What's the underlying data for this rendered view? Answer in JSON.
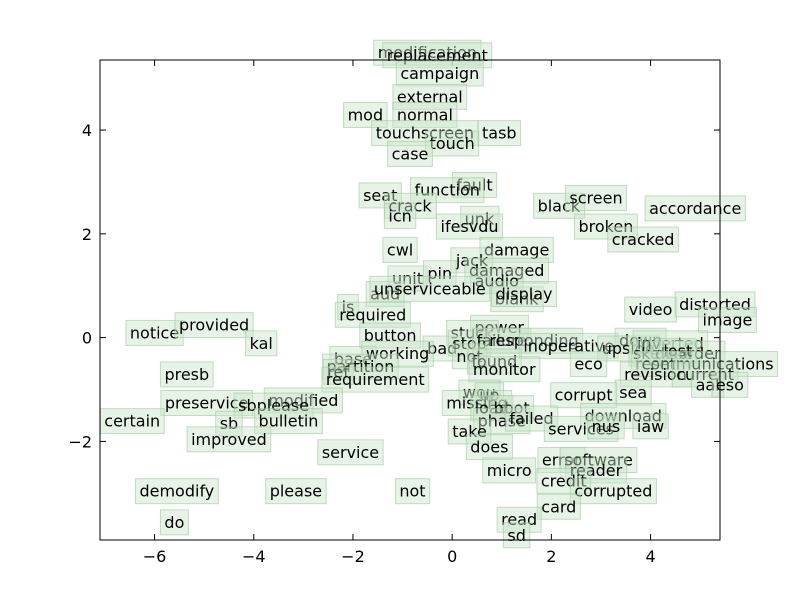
{
  "chart_data": {
    "type": "scatter",
    "title": "",
    "xlabel": "",
    "ylabel": "",
    "xlim": [
      -7.1,
      5.4
    ],
    "ylim": [
      -3.9,
      5.35
    ],
    "xticks": [
      -6,
      -4,
      -2,
      0,
      2,
      4
    ],
    "yticks": [
      -2,
      0,
      2,
      4
    ],
    "xtick_labels": [
      "−6",
      "−4",
      "−2",
      "0",
      "2",
      "4"
    ],
    "ytick_labels": [
      "−2",
      "0",
      "2",
      "4"
    ],
    "grid": false,
    "colors": {
      "box_fill": "#c9e4c9",
      "box_edge": "#9fc89f",
      "text": "#000000"
    },
    "points": [
      {
        "label": "modification",
        "x": -0.5,
        "y": 5.5
      },
      {
        "label": "replacement",
        "x": -0.3,
        "y": 5.45
      },
      {
        "label": "campaign",
        "x": -0.25,
        "y": 5.1
      },
      {
        "label": "external",
        "x": -0.45,
        "y": 4.65
      },
      {
        "label": "mod",
        "x": -1.75,
        "y": 4.3
      },
      {
        "label": "normal",
        "x": -0.55,
        "y": 4.3
      },
      {
        "label": "touchscreen",
        "x": -0.55,
        "y": 3.95
      },
      {
        "label": "tasb",
        "x": 0.95,
        "y": 3.95
      },
      {
        "label": "touch",
        "x": 0.0,
        "y": 3.75
      },
      {
        "label": "case",
        "x": -0.85,
        "y": 3.55
      },
      {
        "label": "fault",
        "x": 0.45,
        "y": 2.95
      },
      {
        "label": "function",
        "x": -0.1,
        "y": 2.85
      },
      {
        "label": "seat",
        "x": -1.45,
        "y": 2.75
      },
      {
        "label": "crack",
        "x": -0.85,
        "y": 2.55
      },
      {
        "label": "black",
        "x": 2.15,
        "y": 2.55
      },
      {
        "label": "screen",
        "x": 2.9,
        "y": 2.7
      },
      {
        "label": "accordance",
        "x": 4.9,
        "y": 2.5
      },
      {
        "label": "icn",
        "x": -1.05,
        "y": 2.35
      },
      {
        "label": "unk",
        "x": 0.55,
        "y": 2.3
      },
      {
        "label": "ifesvdu",
        "x": 0.35,
        "y": 2.15
      },
      {
        "label": "broken",
        "x": 3.1,
        "y": 2.15
      },
      {
        "label": "cracked",
        "x": 3.85,
        "y": 1.9
      },
      {
        "label": "cwl",
        "x": -1.05,
        "y": 1.7
      },
      {
        "label": "damage",
        "x": 1.3,
        "y": 1.7
      },
      {
        "label": "jack",
        "x": 0.4,
        "y": 1.5
      },
      {
        "label": "damaged",
        "x": 1.1,
        "y": 1.3
      },
      {
        "label": "unit",
        "x": -0.9,
        "y": 1.15
      },
      {
        "label": "pin",
        "x": -0.25,
        "y": 1.25
      },
      {
        "label": "audio",
        "x": 0.9,
        "y": 1.1
      },
      {
        "label": "aud",
        "x": -1.35,
        "y": 0.85
      },
      {
        "label": "unserviceable",
        "x": -0.45,
        "y": 0.95
      },
      {
        "label": "blank",
        "x": 1.3,
        "y": 0.75
      },
      {
        "label": "display",
        "x": 1.45,
        "y": 0.85
      },
      {
        "label": "video",
        "x": 4.0,
        "y": 0.55
      },
      {
        "label": "distorted",
        "x": 5.3,
        "y": 0.65
      },
      {
        "label": "image",
        "x": 5.55,
        "y": 0.35
      },
      {
        "label": "notice",
        "x": -6.0,
        "y": 0.1
      },
      {
        "label": "provided",
        "x": -4.8,
        "y": 0.25
      },
      {
        "label": "is",
        "x": -2.1,
        "y": 0.6
      },
      {
        "label": "required",
        "x": -1.6,
        "y": 0.45
      },
      {
        "label": "button",
        "x": -1.25,
        "y": 0.05
      },
      {
        "label": "power",
        "x": 0.95,
        "y": 0.2
      },
      {
        "label": "stuck",
        "x": 0.4,
        "y": 0.1
      },
      {
        "label": "kal",
        "x": -3.85,
        "y": -0.1
      },
      {
        "label": "bad",
        "x": -0.2,
        "y": -0.2
      },
      {
        "label": "stop",
        "x": 0.35,
        "y": -0.1
      },
      {
        "label": "failure",
        "x": 1.0,
        "y": -0.05
      },
      {
        "label": "responding",
        "x": 1.65,
        "y": -0.05
      },
      {
        "label": "inoperative",
        "x": 2.35,
        "y": -0.15
      },
      {
        "label": "down",
        "x": 3.8,
        "y": -0.05
      },
      {
        "label": "upside",
        "x": 3.55,
        "y": -0.2
      },
      {
        "label": "inverted",
        "x": 4.4,
        "y": -0.1
      },
      {
        "label": "skewed",
        "x": 4.25,
        "y": -0.3
      },
      {
        "label": "disorder",
        "x": 4.75,
        "y": -0.3
      },
      {
        "label": "lost",
        "x": 4.55,
        "y": -0.25
      },
      {
        "label": "base",
        "x": -2.0,
        "y": -0.4
      },
      {
        "label": "working",
        "x": -1.1,
        "y": -0.3
      },
      {
        "label": "not",
        "x": 0.35,
        "y": -0.35
      },
      {
        "label": "found",
        "x": 0.85,
        "y": -0.45
      },
      {
        "label": "eco",
        "x": 2.75,
        "y": -0.5
      },
      {
        "label": "reset",
        "x": 4.1,
        "y": -0.5
      },
      {
        "label": "communications",
        "x": 5.15,
        "y": -0.5
      },
      {
        "label": "partition",
        "x": -1.85,
        "y": -0.55
      },
      {
        "label": "monitor",
        "x": 1.05,
        "y": -0.6
      },
      {
        "label": "revision",
        "x": 4.1,
        "y": -0.7
      },
      {
        "label": "current",
        "x": 5.1,
        "y": -0.7
      },
      {
        "label": "presb",
        "x": -5.35,
        "y": -0.7
      },
      {
        "label": "ref",
        "x": -2.3,
        "y": -0.65
      },
      {
        "label": "requirement",
        "x": -1.55,
        "y": -0.8
      },
      {
        "label": "aal",
        "x": 5.15,
        "y": -0.9
      },
      {
        "label": "eso",
        "x": 5.6,
        "y": -0.9
      },
      {
        "label": "modified",
        "x": -3.0,
        "y": -1.2
      },
      {
        "label": "sea",
        "x": 3.65,
        "y": -1.05
      },
      {
        "label": "corrupt",
        "x": 2.65,
        "y": -1.1
      },
      {
        "label": "wou",
        "x": 0.55,
        "y": -1.05
      },
      {
        "label": "up",
        "x": 0.75,
        "y": -1.1
      },
      {
        "label": "preservice",
        "x": -4.95,
        "y": -1.25
      },
      {
        "label": "sbplease",
        "x": -3.6,
        "y": -1.3
      },
      {
        "label": "missing",
        "x": 0.5,
        "y": -1.25
      },
      {
        "label": "load",
        "x": 0.8,
        "y": -1.35
      },
      {
        "label": "boot",
        "x": 1.2,
        "y": -1.35
      },
      {
        "label": "download",
        "x": 3.45,
        "y": -1.5
      },
      {
        "label": "certain",
        "x": -6.45,
        "y": -1.6
      },
      {
        "label": "sb",
        "x": -4.5,
        "y": -1.65
      },
      {
        "label": "bulletin",
        "x": -3.3,
        "y": -1.6
      },
      {
        "label": "phase",
        "x": 1.0,
        "y": -1.6
      },
      {
        "label": "failed",
        "x": 1.6,
        "y": -1.55
      },
      {
        "label": "services",
        "x": 2.6,
        "y": -1.75
      },
      {
        "label": "nus",
        "x": 3.1,
        "y": -1.7
      },
      {
        "label": "iaw",
        "x": 4.0,
        "y": -1.7
      },
      {
        "label": "take",
        "x": 0.35,
        "y": -1.8
      },
      {
        "label": "improved",
        "x": -4.5,
        "y": -1.95
      },
      {
        "label": "does",
        "x": 0.75,
        "y": -2.1
      },
      {
        "label": "service",
        "x": -2.05,
        "y": -2.2
      },
      {
        "label": "error",
        "x": 2.2,
        "y": -2.35
      },
      {
        "label": "software",
        "x": 2.95,
        "y": -2.35
      },
      {
        "label": "reader",
        "x": 2.9,
        "y": -2.55
      },
      {
        "label": "micro",
        "x": 1.15,
        "y": -2.55
      },
      {
        "label": "credit",
        "x": 2.25,
        "y": -2.75
      },
      {
        "label": "demodify",
        "x": -5.55,
        "y": -2.95
      },
      {
        "label": "please",
        "x": -3.15,
        "y": -2.95
      },
      {
        "label": "not",
        "x": -0.8,
        "y": -2.95
      },
      {
        "label": "corrupted",
        "x": 3.25,
        "y": -2.95
      },
      {
        "label": "card",
        "x": 2.15,
        "y": -3.25
      },
      {
        "label": "do",
        "x": -5.6,
        "y": -3.55
      },
      {
        "label": "read",
        "x": 1.35,
        "y": -3.5
      },
      {
        "label": "sd",
        "x": 1.3,
        "y": -3.8
      }
    ]
  }
}
